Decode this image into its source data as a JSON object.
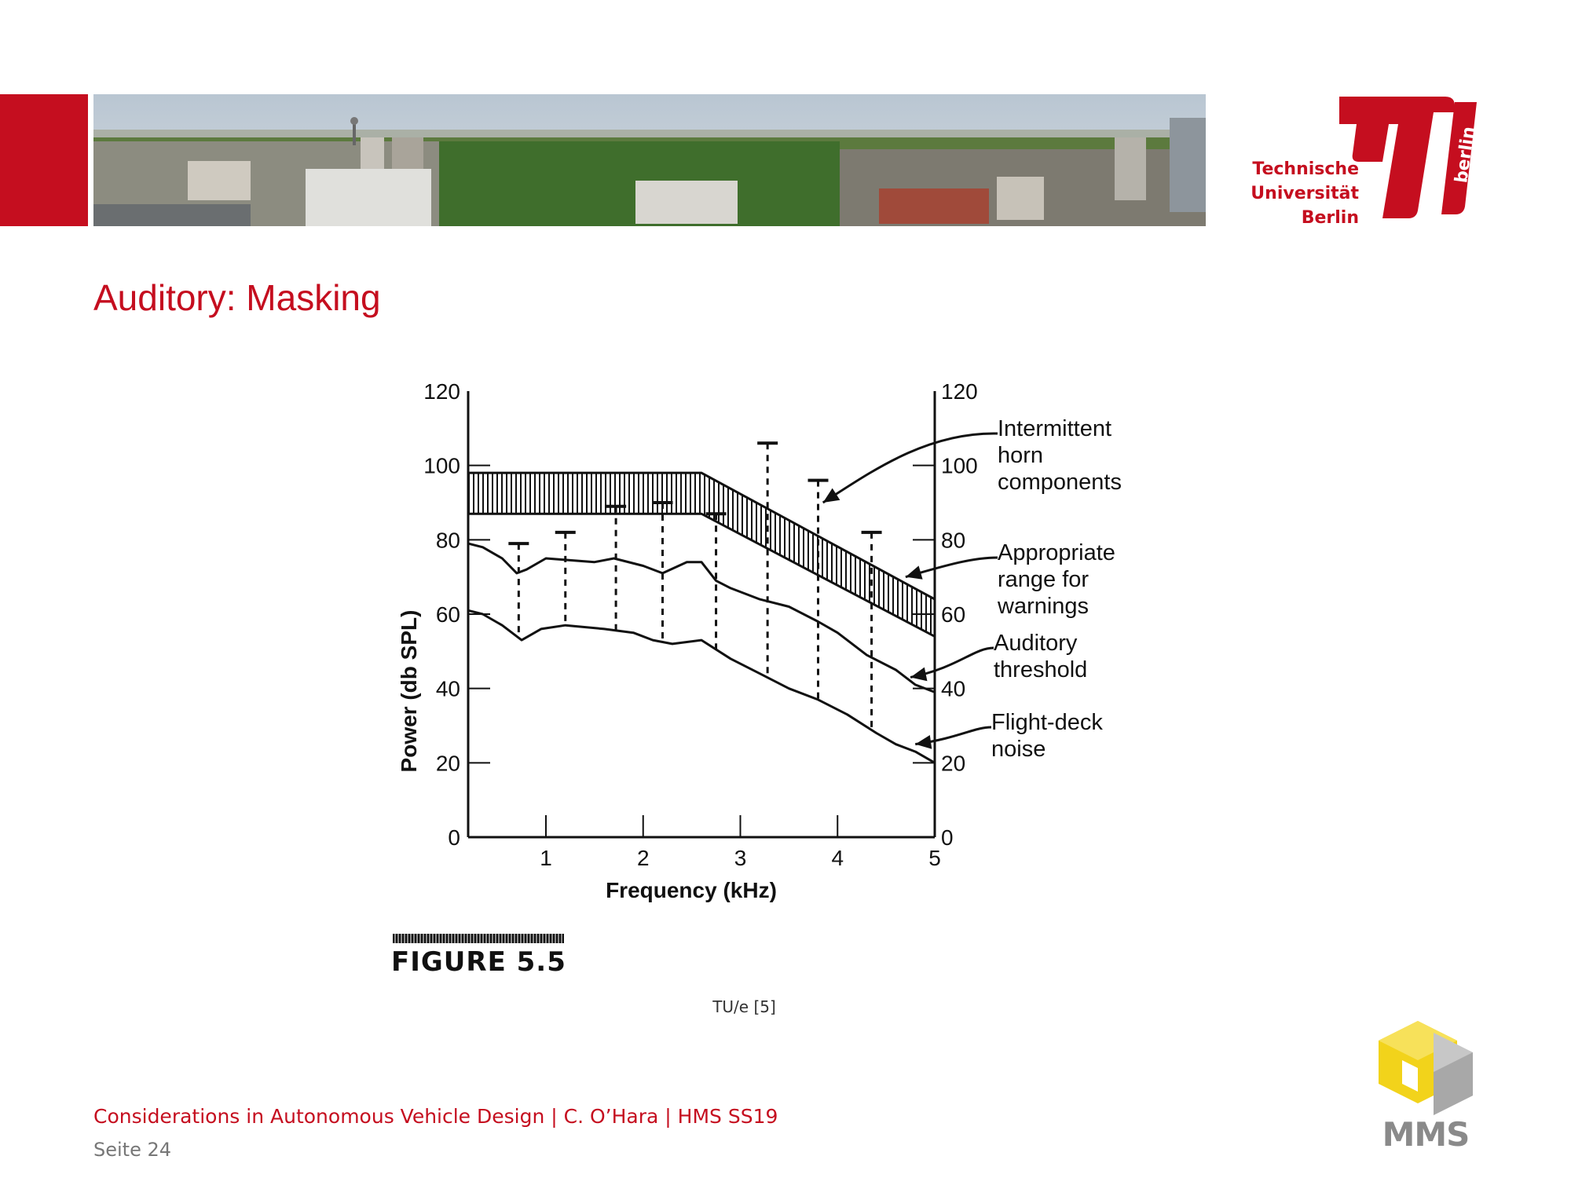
{
  "header": {
    "university_lines": [
      "Technische",
      "Universität",
      "Berlin"
    ],
    "logo_word": "berlin",
    "brand_color": "#c50e1f"
  },
  "slide": {
    "title": "Auditory: Masking",
    "figure_label": "FIGURE 5.5",
    "source": "TU/e [5]",
    "footer": "Considerations in Autonomous Vehicle Design | C. O’Hara | HMS SS19",
    "page": "Seite 24",
    "mms_logo_text": "MMS"
  },
  "chart_data": {
    "type": "line",
    "xlabel": "Frequency (kHz)",
    "ylabel": "Power (db SPL)",
    "xlim": [
      0.2,
      5
    ],
    "ylim": [
      0,
      120
    ],
    "x_ticks": [
      "1",
      "2",
      "3",
      "4",
      "5"
    ],
    "x_tick_values": [
      1,
      2,
      3,
      4,
      5
    ],
    "y_ticks": [
      "0",
      "20",
      "40",
      "60",
      "80",
      "100",
      "120"
    ],
    "y_tick_values": [
      0,
      20,
      40,
      60,
      80,
      100,
      120
    ],
    "series": [
      {
        "name": "Auditory threshold",
        "x": [
          0.2,
          0.35,
          0.55,
          0.7,
          0.8,
          1.0,
          1.5,
          1.7,
          2.0,
          2.2,
          2.45,
          2.6,
          2.75,
          2.9,
          3.2,
          3.5,
          3.8,
          4.0,
          4.3,
          4.6,
          4.8,
          5.0
        ],
        "y": [
          79,
          78,
          75,
          71,
          72,
          75,
          74,
          75,
          73,
          71,
          74,
          74,
          69,
          67,
          64,
          62,
          58,
          55,
          49,
          45,
          41,
          39
        ]
      },
      {
        "name": "Flight-deck noise",
        "x": [
          0.2,
          0.35,
          0.55,
          0.75,
          0.95,
          1.2,
          1.6,
          1.9,
          2.1,
          2.3,
          2.6,
          2.9,
          3.2,
          3.5,
          3.8,
          4.1,
          4.4,
          4.6,
          4.8,
          5.0
        ],
        "y": [
          61,
          60,
          57,
          53,
          56,
          57,
          56,
          55,
          53,
          52,
          53,
          48,
          44,
          40,
          37,
          33,
          28,
          25,
          23,
          20
        ]
      }
    ],
    "warning_range": {
      "name": "Appropriate range for warnings",
      "x": [
        0.2,
        2.6,
        5.0
      ],
      "upper": [
        98,
        98,
        64
      ],
      "lower": [
        87,
        87,
        54
      ]
    },
    "horn_components": {
      "name": "Intermittent horn components",
      "x": [
        0.72,
        1.2,
        1.72,
        2.2,
        2.75,
        3.28,
        3.8,
        4.35
      ],
      "level": [
        79,
        82,
        89,
        90,
        87,
        106,
        96,
        82
      ]
    },
    "annotations": [
      {
        "lines": [
          "Intermittent",
          "horn",
          "components"
        ]
      },
      {
        "lines": [
          "Appropriate",
          "range for",
          "warnings"
        ]
      },
      {
        "lines": [
          "Auditory",
          "threshold"
        ]
      },
      {
        "lines": [
          "Flight-deck",
          "noise"
        ]
      }
    ]
  }
}
